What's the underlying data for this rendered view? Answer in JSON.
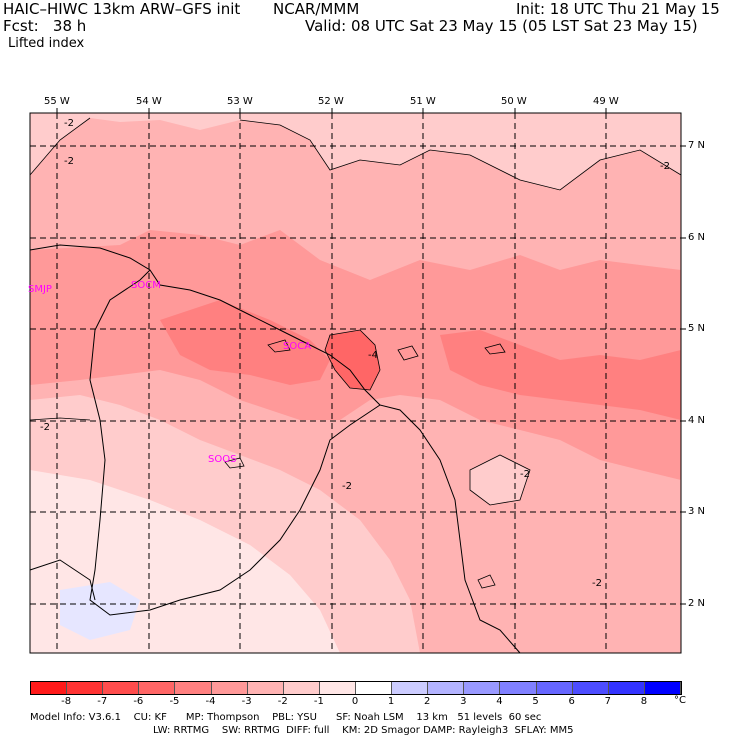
{
  "header": {
    "model": "HAIC–HIWC 13km ARW–GFS init",
    "org": "NCAR/MMM",
    "init": "Init: 18 UTC Thu 21 May 15",
    "fcst": "Fcst:   38 h",
    "valid": "Valid: 08 UTC Sat 23 May 15 (05 LST Sat 23 May 15)",
    "field": "Lifted index"
  },
  "map": {
    "lon_labels": [
      "55 W",
      "54 W",
      "53 W",
      "52 W",
      "51 W",
      "50 W",
      "49 W"
    ],
    "lat_labels": [
      "7 N",
      "6 N",
      "5 N",
      "4 N",
      "3 N",
      "2 N"
    ],
    "stations": [
      "SMJP",
      "SOCM",
      "SOCA",
      "SOOS"
    ],
    "contour_labels": [
      "-2",
      "-2",
      "-2",
      "-4",
      "-2",
      "-2",
      "-2",
      "-2"
    ]
  },
  "colorbar": {
    "labels": [
      "-8",
      "-7",
      "-6",
      "-5",
      "-4",
      "-3",
      "-2",
      "-1",
      "0",
      "1",
      "2",
      "3",
      "4",
      "5",
      "6",
      "7",
      "8"
    ],
    "unit": "°C",
    "colors": [
      "#ff1a1a",
      "#ff3333",
      "#ff4d4d",
      "#ff6666",
      "#ff8080",
      "#ff9999",
      "#ffb3b3",
      "#ffcccc",
      "#ffe6e6",
      "#ffffff",
      "#ccccff",
      "#b3b3ff",
      "#9999ff",
      "#8080ff",
      "#6666ff",
      "#4d4dff",
      "#3333ff",
      "#0000ff"
    ]
  },
  "footer": {
    "line1": "Model Info: V3.6.1    CU: KF      MP: Thompson    PBL: YSU      SF: Noah LSM    13 km   51 levels  60 sec",
    "line2": "LW: RRTMG    SW: RRTMG  DIFF: full    KM: 2D Smagor DAMP: Rayleigh3  SFLAY: MM5"
  }
}
